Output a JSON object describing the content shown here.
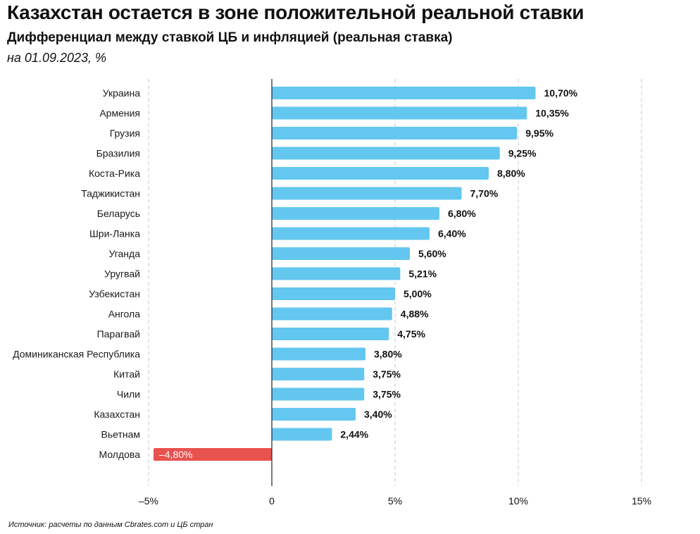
{
  "header": {
    "title": "Казахстан остается в зоне положительной реальной ставки",
    "subtitle": "Дифференциал между ставкой ЦБ и инфляцией (реальная ставка)",
    "date": "на 01.09.2023, %"
  },
  "footer": {
    "source": "Источник: расчеты по данным Cbrates.com и ЦБ стран"
  },
  "colors": {
    "positive": "#63c7ef",
    "negative": "#e8524f",
    "grid": "#c8c8c8",
    "axis": "#222222"
  },
  "chart_data": {
    "type": "bar",
    "orientation": "horizontal",
    "title": "Дифференциал между ставкой ЦБ и инфляцией (реальная ставка)",
    "xlabel": "",
    "ylabel": "",
    "xlim": [
      -5,
      15
    ],
    "grid": true,
    "categories": [
      "Украина",
      "Армения",
      "Грузия",
      "Бразилия",
      "Коста-Рика",
      "Таджикистан",
      "Беларусь",
      "Шри-Ланка",
      "Уганда",
      "Уругвай",
      "Узбекистан",
      "Ангола",
      "Парагвай",
      "Доминиканская Республика",
      "Китай",
      "Чили",
      "Казахстан",
      "Вьетнам",
      "Молдова"
    ],
    "values": [
      10.7,
      10.35,
      9.95,
      9.25,
      8.8,
      7.7,
      6.8,
      6.4,
      5.6,
      5.21,
      5.0,
      4.88,
      4.75,
      3.8,
      3.75,
      3.75,
      3.4,
      2.44,
      -4.8
    ],
    "value_labels": [
      "10,70%",
      "10,35%",
      "9,95%",
      "9,25%",
      "8,80%",
      "7,70%",
      "6,80%",
      "6,40%",
      "5,60%",
      "5,21%",
      "5,00%",
      "4,88%",
      "4,75%",
      "3,80%",
      "3,75%",
      "3,75%",
      "3,40%",
      "2,44%",
      "–4,80%"
    ],
    "ticks": [
      -5,
      0,
      5,
      10,
      15
    ],
    "tick_labels": [
      "–5%",
      "0",
      "5%",
      "10%",
      "15%"
    ]
  }
}
